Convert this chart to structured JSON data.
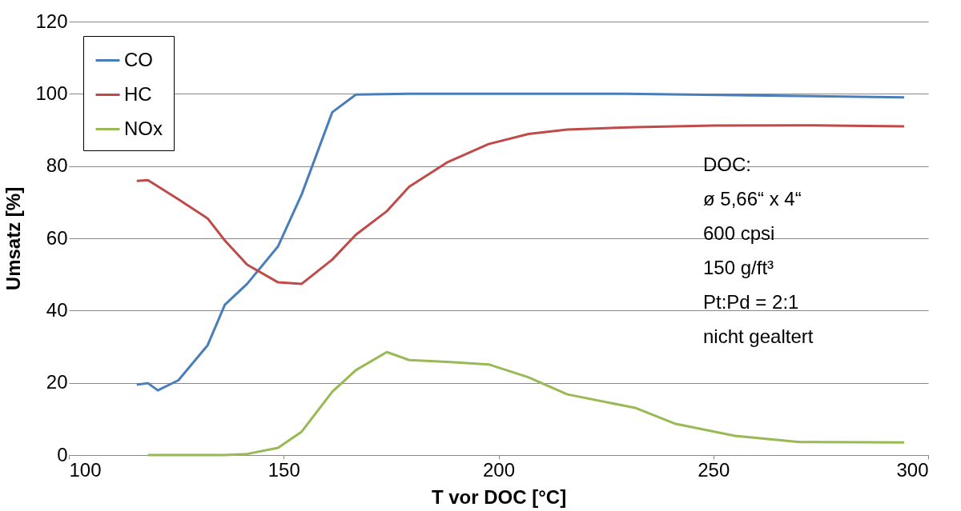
{
  "chart_data": {
    "type": "line",
    "xlabel": "T vor DOC [°C]",
    "ylabel": "Umsatz [%]",
    "xlim": [
      100,
      300
    ],
    "xticks": [
      100,
      150,
      200,
      250,
      300
    ],
    "ylim": [
      0,
      120
    ],
    "yticks": [
      0,
      20,
      40,
      60,
      80,
      100,
      120
    ],
    "grid": "y",
    "legend": "top left",
    "line_style": "solid",
    "marker": "none",
    "annotations": [
      "DOC:\nø 5,66“ x 4“\n600 cpsi\n150 g/ft³\nPt:Pd = 2:1\nnicht gealtert"
    ],
    "series": [
      {
        "name": "CO",
        "color": "#4a7ebb",
        "x": [
          115.8,
          118.4,
          120.7,
          125.5,
          132.3,
          136.3,
          141.5,
          148.7,
          154.2,
          161.3,
          166.8,
          179.2,
          200.5,
          229.5,
          258.5,
          294.4
        ],
        "values": [
          19.5,
          19.9,
          17.9,
          20.7,
          30.4,
          41.6,
          47.4,
          57.8,
          72.2,
          94.9,
          99.8,
          100,
          100,
          100,
          99.6,
          99
        ]
      },
      {
        "name": "HC",
        "color": "#be4b48",
        "x": [
          115.8,
          118.4,
          125.5,
          132.3,
          136.3,
          141.5,
          148.7,
          154.2,
          161.3,
          166.8,
          174,
          179.2,
          188,
          197.7,
          207,
          216,
          232,
          250,
          270,
          294.4
        ],
        "values": [
          75.9,
          76.1,
          70.8,
          65.5,
          59.4,
          52.7,
          47.8,
          47.4,
          54.1,
          61,
          67.5,
          74.3,
          81,
          86.1,
          88.9,
          90.1,
          90.8,
          91.2,
          91.3,
          91
        ]
      },
      {
        "name": "NOx",
        "color": "#98b954",
        "x": [
          118.4,
          125.5,
          132.3,
          136.3,
          141.5,
          148.7,
          154.2,
          161.3,
          166.8,
          174,
          179.2,
          188,
          197.7,
          207,
          216,
          232,
          241,
          255,
          270,
          294.4
        ],
        "values": [
          0,
          0,
          0,
          0,
          0.3,
          2,
          6.5,
          17.5,
          23.5,
          28.5,
          26.3,
          25.8,
          25.1,
          21.5,
          16.8,
          13,
          8.7,
          5.3,
          3.6,
          3.5
        ]
      }
    ]
  }
}
